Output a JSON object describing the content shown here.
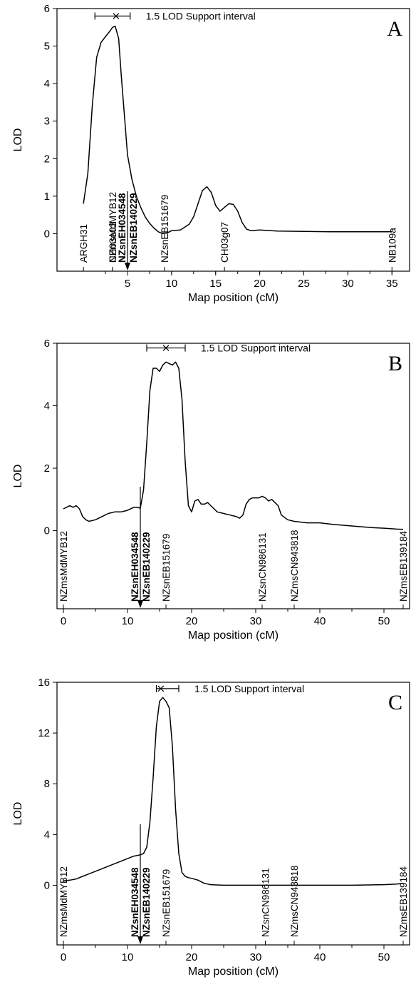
{
  "chart_data": [
    {
      "type": "line",
      "panel_letter": "A",
      "xlabel": "Map position (cM)",
      "ylabel": "LOD",
      "xlim": [
        -3,
        37
      ],
      "ylim": [
        -1,
        6
      ],
      "xticks": [
        5,
        10,
        15,
        20,
        25,
        30,
        35
      ],
      "yticks": [
        0,
        1,
        2,
        3,
        4,
        5,
        6
      ],
      "series": [
        {
          "x": [
            0,
            0.5,
            1,
            1.5,
            2,
            2.5,
            3,
            3.3,
            3.6,
            4,
            4.3,
            4.7,
            5,
            5.5,
            6,
            6.5,
            7,
            7.5,
            8,
            8.5,
            9,
            9.5,
            10,
            11,
            12,
            12.5,
            13,
            13.5,
            14,
            14.5,
            15,
            15.5,
            16,
            16.5,
            17,
            17.5,
            18,
            18.5,
            19,
            20,
            22,
            25,
            28,
            31,
            34,
            35
          ],
          "y": [
            0.8,
            1.6,
            3.4,
            4.7,
            5.1,
            5.25,
            5.4,
            5.5,
            5.53,
            5.2,
            4.2,
            3.0,
            2.1,
            1.45,
            1.0,
            0.7,
            0.45,
            0.28,
            0.15,
            0.05,
            0.0,
            0.02,
            0.08,
            0.1,
            0.25,
            0.45,
            0.8,
            1.15,
            1.25,
            1.1,
            0.75,
            0.6,
            0.7,
            0.8,
            0.78,
            0.6,
            0.3,
            0.12,
            0.08,
            0.1,
            0.07,
            0.06,
            0.05,
            0.05,
            0.05,
            0.05
          ]
        }
      ],
      "support_interval": {
        "low": 1.3,
        "peak": 3.7,
        "high": 5.3,
        "lod": 5.8,
        "label": "1.5 LOD Support interval"
      },
      "markers": [
        {
          "name": "ARGH31",
          "pos": 0,
          "bold": false
        },
        {
          "name": "CH03e03",
          "pos": 3.3,
          "bold": false
        },
        {
          "name": "NZmsMdMYB12",
          "pos": 3.3,
          "bold": false
        },
        {
          "name": "NZsnEH034548",
          "pos": 5.0,
          "bold": true
        },
        {
          "name": "NZsnEB140229",
          "pos": 5.0,
          "bold": true
        },
        {
          "name": "NZsnEB151679",
          "pos": 9.2,
          "bold": false
        },
        {
          "name": "CH03g07",
          "pos": 16.0,
          "bold": false
        },
        {
          "name": "NB109a",
          "pos": 35.0,
          "bold": false
        }
      ]
    },
    {
      "type": "line",
      "panel_letter": "B",
      "xlabel": "Map position (cM)",
      "ylabel": "LOD",
      "xlim": [
        -1,
        54
      ],
      "ylim": [
        -2.5,
        6
      ],
      "xticks": [
        0,
        10,
        20,
        30,
        40,
        50
      ],
      "yticks": [
        0,
        2,
        4,
        6
      ],
      "series": [
        {
          "x": [
            0,
            0.5,
            1,
            1.5,
            2,
            2.5,
            3,
            3.5,
            4,
            5,
            6,
            7,
            8,
            9,
            10,
            11,
            11.5,
            12,
            12.5,
            13,
            13.5,
            14,
            14.5,
            15,
            15.5,
            16,
            16.5,
            17,
            17.5,
            18,
            18.5,
            19,
            19.5,
            20,
            20.5,
            21,
            21.5,
            22,
            22.5,
            23,
            24,
            25,
            26,
            27,
            27.5,
            28,
            28.5,
            29,
            29.5,
            30,
            30.5,
            31,
            31.5,
            32,
            32.5,
            33,
            33.5,
            34,
            35,
            36,
            38,
            40,
            42,
            45,
            48,
            50,
            52,
            53
          ],
          "y": [
            0.7,
            0.75,
            0.8,
            0.75,
            0.8,
            0.7,
            0.45,
            0.35,
            0.3,
            0.35,
            0.45,
            0.55,
            0.6,
            0.6,
            0.65,
            0.75,
            0.75,
            0.72,
            1.3,
            2.8,
            4.5,
            5.2,
            5.2,
            5.1,
            5.3,
            5.4,
            5.35,
            5.3,
            5.4,
            5.2,
            4.2,
            2.2,
            0.8,
            0.6,
            0.95,
            1.0,
            0.85,
            0.85,
            0.9,
            0.8,
            0.6,
            0.55,
            0.5,
            0.45,
            0.4,
            0.5,
            0.85,
            1.0,
            1.05,
            1.05,
            1.05,
            1.1,
            1.05,
            0.95,
            1.0,
            0.9,
            0.8,
            0.5,
            0.35,
            0.3,
            0.25,
            0.25,
            0.2,
            0.15,
            0.1,
            0.08,
            0.05,
            0.04
          ]
        }
      ],
      "support_interval": {
        "low": 13.0,
        "peak": 16.0,
        "high": 19.0,
        "lod": 5.85,
        "label": "1.5 LOD Support interval"
      },
      "markers": [
        {
          "name": "NZmsMdMYB12",
          "pos": 0,
          "bold": false
        },
        {
          "name": "NZsnEH034548",
          "pos": 12.0,
          "bold": true
        },
        {
          "name": "NZsnEB140229",
          "pos": 12.0,
          "bold": true
        },
        {
          "name": "NZsnEB151679",
          "pos": 16.0,
          "bold": false
        },
        {
          "name": "NZsnCN986131",
          "pos": 31.0,
          "bold": false
        },
        {
          "name": "NZmsCN943818",
          "pos": 36.0,
          "bold": false
        },
        {
          "name": "NZmsEB139184",
          "pos": 53.0,
          "bold": false
        }
      ]
    },
    {
      "type": "line",
      "panel_letter": "C",
      "xlabel": "Map position (cM)",
      "ylabel": "LOD",
      "xlim": [
        -1,
        54
      ],
      "ylim": [
        -4.7,
        16
      ],
      "xticks": [
        0,
        10,
        20,
        30,
        40,
        50
      ],
      "yticks": [
        0,
        4,
        8,
        12,
        16
      ],
      "series": [
        {
          "x": [
            0,
            1,
            2,
            3,
            4,
            5,
            6,
            7,
            8,
            9,
            10,
            11,
            11.5,
            12,
            12.5,
            13,
            13.5,
            14,
            14.5,
            15,
            15.5,
            16,
            16.5,
            17,
            17.5,
            18,
            18.5,
            19,
            19.5,
            20,
            21,
            22,
            23,
            25,
            28,
            31,
            35,
            40,
            45,
            50,
            52,
            53
          ],
          "y": [
            0.35,
            0.4,
            0.5,
            0.7,
            0.9,
            1.1,
            1.3,
            1.5,
            1.7,
            1.9,
            2.1,
            2.3,
            2.35,
            2.4,
            2.5,
            3.0,
            5.0,
            8.5,
            12.5,
            14.5,
            14.8,
            14.5,
            14.0,
            11.0,
            6.0,
            2.5,
            1.0,
            0.7,
            0.6,
            0.55,
            0.4,
            0.15,
            0.05,
            0.0,
            0.0,
            0.0,
            0.0,
            0.0,
            0.0,
            0.05,
            0.1,
            0.15
          ]
        }
      ],
      "support_interval": {
        "low": 14.5,
        "peak": 15.2,
        "high": 18.0,
        "lod": 15.5,
        "label": "1.5 LOD Support interval"
      },
      "markers": [
        {
          "name": "NZmsMdMYB12",
          "pos": 0,
          "bold": false
        },
        {
          "name": "NZsnEH034548",
          "pos": 12.0,
          "bold": true
        },
        {
          "name": "NZsnEB140229",
          "pos": 12.0,
          "bold": true
        },
        {
          "name": "NZsnEB151679",
          "pos": 16.0,
          "bold": false
        },
        {
          "name": "NZsnCN986131",
          "pos": 31.5,
          "bold": false
        },
        {
          "name": "NZmsCN943818",
          "pos": 36.0,
          "bold": false
        },
        {
          "name": "NZmsEB139184",
          "pos": 53.0,
          "bold": false
        }
      ]
    }
  ]
}
